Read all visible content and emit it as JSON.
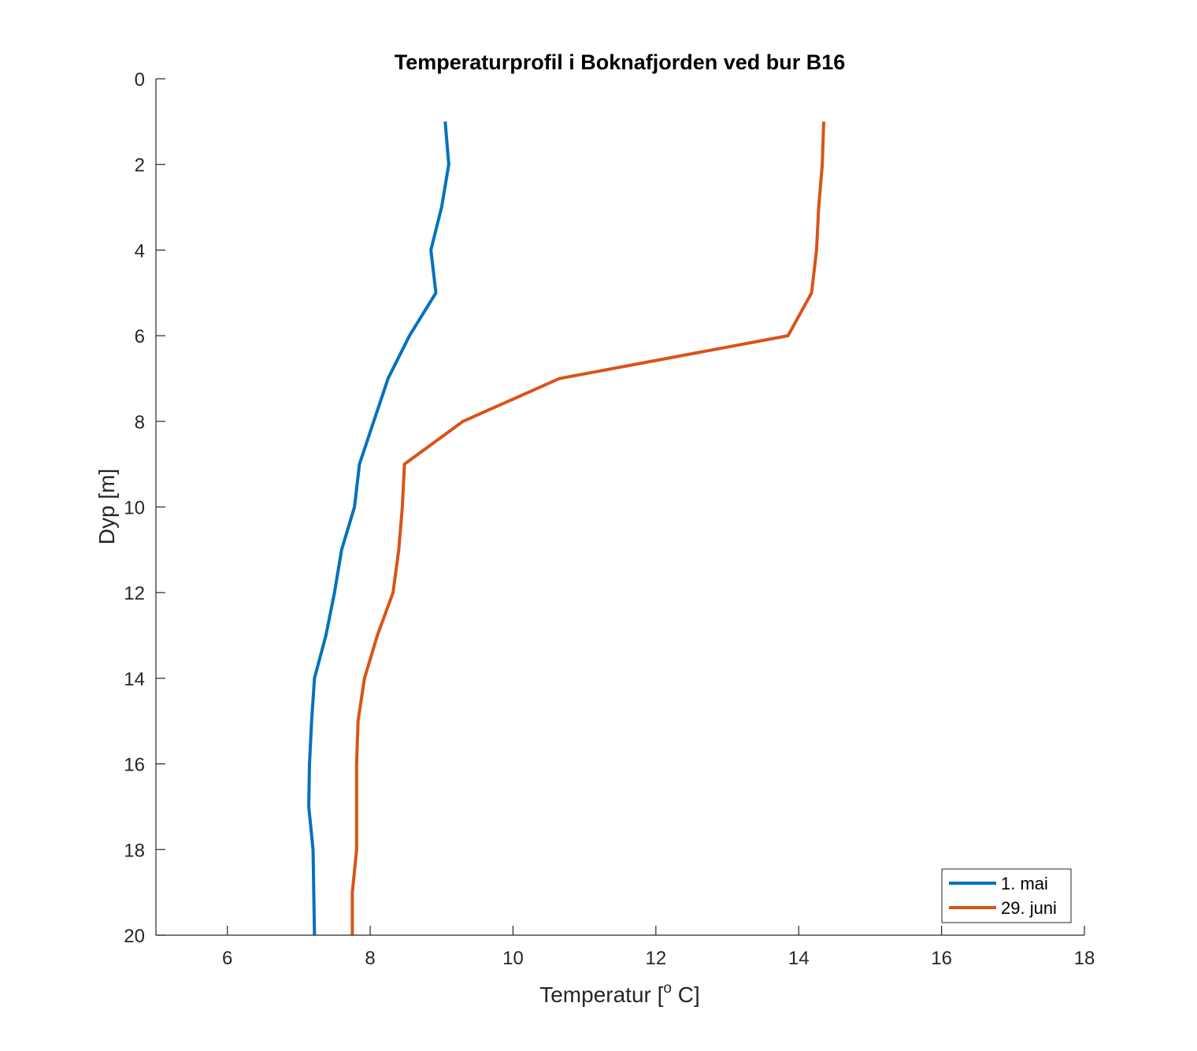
{
  "chart_data": {
    "type": "line",
    "title": "Temperaturprofil i Boknafjorden ved bur B16",
    "xlabel_main": "Temperatur [",
    "xlabel_sup": "o",
    "xlabel_end": " C]",
    "ylabel": "Dyp [m]",
    "xlim": [
      5,
      18
    ],
    "ylim": [
      0,
      20
    ],
    "y_reversed": true,
    "grid": false,
    "legend_position": "bottom-right",
    "xticks": [
      6,
      8,
      10,
      12,
      14,
      16,
      18
    ],
    "yticks": [
      0,
      2,
      4,
      6,
      8,
      10,
      12,
      14,
      16,
      18,
      20
    ],
    "series": [
      {
        "name": "1. mai",
        "color": "#0072BD",
        "depth": [
          1,
          2,
          3,
          4,
          5,
          6,
          7,
          8,
          9,
          10,
          11,
          12,
          13,
          14,
          15,
          16,
          17,
          18,
          19,
          20
        ],
        "temperature": [
          9.05,
          9.1,
          9.0,
          8.85,
          8.92,
          8.55,
          8.25,
          8.05,
          7.85,
          7.78,
          7.6,
          7.5,
          7.38,
          7.22,
          7.18,
          7.15,
          7.14,
          7.2,
          7.21,
          7.22
        ]
      },
      {
        "name": "29. juni",
        "color": "#D95319",
        "depth": [
          1,
          2,
          3,
          4,
          5,
          6,
          7,
          8,
          9,
          10,
          11,
          12,
          13,
          14,
          15,
          16,
          17,
          18,
          19,
          20
        ],
        "temperature": [
          14.35,
          14.33,
          14.28,
          14.25,
          14.18,
          13.85,
          10.65,
          9.3,
          8.48,
          8.45,
          8.4,
          8.32,
          8.1,
          7.92,
          7.83,
          7.81,
          7.81,
          7.81,
          7.75,
          7.75
        ]
      }
    ]
  }
}
